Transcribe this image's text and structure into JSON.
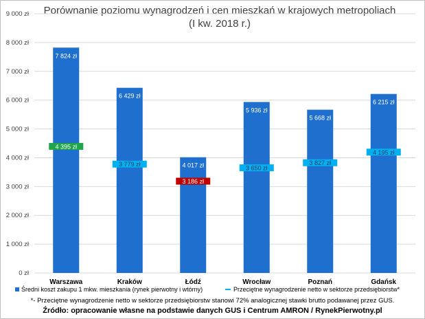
{
  "page": {
    "title_line1": "Porównanie poziomu wynagrodzeń i cen mieszkań w krajowych metropoliach",
    "title_line2": "(I kw. 2018 r.)",
    "footnote": "*- Przeciętne wynagrodzenie netto w sektorze przedsiębiorstw stanowi 72% analogicznej stawki brutto podawanej przez GUS.",
    "source": "Źródło: opracowanie własne na podstawie danych GUS i Centrum AMRON / RynekPierwotny.pl"
  },
  "chart_data": {
    "type": "bar",
    "title": "Porównanie poziomu wynagrodzeń i cen mieszkań w krajowych metropoliach (I kw. 2018 r.)",
    "categories": [
      "Warszawa",
      "Kraków",
      "Łódź",
      "Wrocław",
      "Poznań",
      "Gdańsk"
    ],
    "ylim": [
      0,
      9000
    ],
    "yticks": [
      0,
      1000,
      2000,
      3000,
      4000,
      5000,
      6000,
      7000,
      8000,
      9000
    ],
    "ytick_labels": [
      "0 zł",
      "1 000 zł",
      "2 000 zł",
      "3 000 zł",
      "4 000 zł",
      "5 000 zł",
      "6 000 zł",
      "7 000 zł",
      "8 000 zł",
      "9 000 zł"
    ],
    "grid": true,
    "legend_position": "bottom",
    "series": [
      {
        "name": "Średni koszt zakupu 1 mkw. mieszkania (rynek pierwotny i wtórny)",
        "kind": "bar",
        "color": "#1f6fcf",
        "values": [
          7824,
          6429,
          4017,
          5936,
          5668,
          6215
        ],
        "labels": [
          "7 824 zł",
          "6 429 zł",
          "4 017 zł",
          "5 936 zł",
          "5 668 zł",
          "6 215 zł"
        ]
      },
      {
        "name": "Przeciętne wynagrodzenie netto w sektorze przedsiębiorstw*",
        "kind": "marker",
        "color": "#00b0f0",
        "values": [
          4395,
          3779,
          3186,
          3650,
          3827,
          4195
        ],
        "labels": [
          "4 395 zł",
          "3 779 zł",
          "3 186 zł",
          "3 650 zł",
          "3 827 zł",
          "4 195 zł"
        ],
        "highlight_colors": [
          "#1fa54a",
          "#00b0f0",
          "#c00000",
          "#00b0f0",
          "#00b0f0",
          "#00b0f0"
        ]
      }
    ]
  }
}
